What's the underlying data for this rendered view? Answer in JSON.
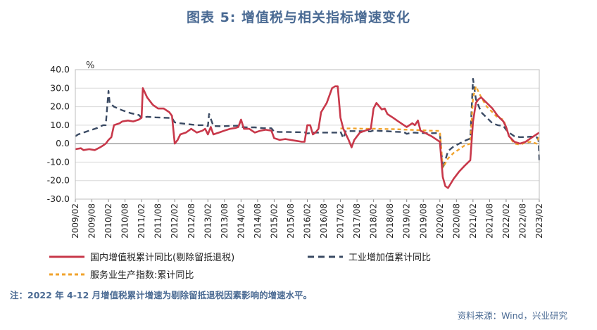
{
  "title": "图表 5:  增值税与相关指标增速变化",
  "y_unit": "%",
  "note": "注：2022 年 4-12 月增值税累计增速为剔除留抵退税因素影响的增速水平。",
  "source": "资料来源：Wind，兴业研究",
  "colors": {
    "vat": "#c8384a",
    "industry": "#3a4a63",
    "services": "#f1a32c",
    "grid": "#d9d9d9",
    "axis": "#888888"
  },
  "chart_data": {
    "type": "line",
    "ylim": [
      -30,
      40
    ],
    "yticks": [
      -30,
      -20,
      -10,
      0,
      10,
      20,
      30,
      40
    ],
    "ytick_labels": [
      "-30.0",
      "-20.0",
      "-10.0",
      "0.0",
      "10.0",
      "20.0",
      "30.0",
      "40.0"
    ],
    "xlim": [
      2009.083,
      2023.083
    ],
    "xtick_labels": [
      "2009/02",
      "2009/08",
      "2010/02",
      "2010/08",
      "2011/02",
      "2011/08",
      "2012/02",
      "2012/08",
      "2013/02",
      "2013/08",
      "2014/02",
      "2014/08",
      "2015/02",
      "2015/08",
      "2016/02",
      "2016/08",
      "2017/02",
      "2017/08",
      "2018/02",
      "2018/08",
      "2019/02",
      "2019/08",
      "2020/02",
      "2020/08",
      "2021/02",
      "2021/08",
      "2022/02",
      "2022/08",
      "2023/02"
    ],
    "grid": true,
    "legend_position": "bottom",
    "series": [
      {
        "name": "国内增值税累计同比(剔除留抵退税)",
        "style": "solid",
        "points": [
          [
            2009.083,
            -3
          ],
          [
            2009.25,
            -2.5
          ],
          [
            2009.33,
            -3.5
          ],
          [
            2009.5,
            -3
          ],
          [
            2009.67,
            -3.5
          ],
          [
            2009.83,
            -2
          ],
          [
            2009.92,
            -1
          ],
          [
            2010.0,
            0
          ],
          [
            2010.083,
            2
          ],
          [
            2010.17,
            3.5
          ],
          [
            2010.25,
            10
          ],
          [
            2010.42,
            11
          ],
          [
            2010.5,
            12
          ],
          [
            2010.67,
            12.5
          ],
          [
            2010.83,
            12
          ],
          [
            2011.0,
            13
          ],
          [
            2011.083,
            14
          ],
          [
            2011.12,
            30
          ],
          [
            2011.25,
            25
          ],
          [
            2011.42,
            21
          ],
          [
            2011.58,
            19
          ],
          [
            2011.75,
            19
          ],
          [
            2011.92,
            17
          ],
          [
            2012.0,
            15
          ],
          [
            2012.083,
            0
          ],
          [
            2012.17,
            2
          ],
          [
            2012.25,
            5
          ],
          [
            2012.42,
            6
          ],
          [
            2012.58,
            8
          ],
          [
            2012.75,
            6
          ],
          [
            2012.92,
            7
          ],
          [
            2013.0,
            8
          ],
          [
            2013.083,
            5
          ],
          [
            2013.17,
            9
          ],
          [
            2013.25,
            5
          ],
          [
            2013.42,
            6
          ],
          [
            2013.58,
            7
          ],
          [
            2013.75,
            8
          ],
          [
            2013.92,
            8.5
          ],
          [
            2014.0,
            9
          ],
          [
            2014.083,
            13
          ],
          [
            2014.17,
            8
          ],
          [
            2014.33,
            8
          ],
          [
            2014.5,
            6
          ],
          [
            2014.67,
            7
          ],
          [
            2014.83,
            7.5
          ],
          [
            2015.0,
            7
          ],
          [
            2015.083,
            3
          ],
          [
            2015.25,
            2
          ],
          [
            2015.42,
            2.5
          ],
          [
            2015.58,
            2
          ],
          [
            2015.75,
            1.5
          ],
          [
            2015.92,
            1
          ],
          [
            2016.0,
            1
          ],
          [
            2016.083,
            10
          ],
          [
            2016.17,
            10
          ],
          [
            2016.25,
            5
          ],
          [
            2016.33,
            6
          ],
          [
            2016.42,
            8
          ],
          [
            2016.5,
            17
          ],
          [
            2016.67,
            22
          ],
          [
            2016.83,
            30
          ],
          [
            2016.92,
            31
          ],
          [
            2017.0,
            31
          ],
          [
            2017.083,
            14
          ],
          [
            2017.17,
            8
          ],
          [
            2017.33,
            2
          ],
          [
            2017.42,
            -2
          ],
          [
            2017.5,
            2
          ],
          [
            2017.67,
            6
          ],
          [
            2017.83,
            7
          ],
          [
            2018.0,
            8
          ],
          [
            2018.083,
            19
          ],
          [
            2018.17,
            22
          ],
          [
            2018.33,
            18.5
          ],
          [
            2018.42,
            19
          ],
          [
            2018.5,
            16
          ],
          [
            2018.67,
            14
          ],
          [
            2018.83,
            12
          ],
          [
            2019.0,
            10
          ],
          [
            2019.083,
            9
          ],
          [
            2019.25,
            11
          ],
          [
            2019.33,
            10
          ],
          [
            2019.42,
            12.5
          ],
          [
            2019.5,
            7
          ],
          [
            2019.67,
            5.5
          ],
          [
            2019.83,
            4
          ],
          [
            2020.0,
            2
          ],
          [
            2020.083,
            1
          ],
          [
            2020.17,
            -18
          ],
          [
            2020.25,
            -23
          ],
          [
            2020.33,
            -24
          ],
          [
            2020.5,
            -19
          ],
          [
            2020.67,
            -15
          ],
          [
            2020.83,
            -12
          ],
          [
            2021.0,
            -9
          ],
          [
            2021.083,
            12
          ],
          [
            2021.17,
            22
          ],
          [
            2021.25,
            24
          ],
          [
            2021.33,
            25
          ],
          [
            2021.5,
            22
          ],
          [
            2021.67,
            19
          ],
          [
            2021.83,
            15
          ],
          [
            2022.0,
            12
          ],
          [
            2022.083,
            9
          ],
          [
            2022.17,
            4
          ],
          [
            2022.33,
            1
          ],
          [
            2022.5,
            0
          ],
          [
            2022.67,
            1
          ],
          [
            2022.83,
            3
          ],
          [
            2023.0,
            5
          ],
          [
            2023.083,
            6
          ]
        ]
      },
      {
        "name": "工业增加值累计同比",
        "style": "dashed",
        "points": [
          [
            2009.083,
            4
          ],
          [
            2009.17,
            5
          ],
          [
            2009.5,
            7
          ],
          [
            2009.75,
            8.5
          ],
          [
            2009.92,
            10
          ],
          [
            2010.0,
            10
          ],
          [
            2010.083,
            28.5
          ],
          [
            2010.12,
            22
          ],
          [
            2010.25,
            20
          ],
          [
            2010.5,
            18
          ],
          [
            2010.75,
            16.5
          ],
          [
            2011.0,
            15.5
          ],
          [
            2011.083,
            14
          ],
          [
            2011.25,
            14.5
          ],
          [
            2011.5,
            14.2
          ],
          [
            2011.75,
            14
          ],
          [
            2011.92,
            13.9
          ],
          [
            2012.0,
            13.9
          ],
          [
            2012.083,
            11.5
          ],
          [
            2012.25,
            11
          ],
          [
            2012.5,
            10.5
          ],
          [
            2012.75,
            10
          ],
          [
            2013.0,
            10
          ],
          [
            2013.083,
            9.5
          ],
          [
            2013.12,
            16
          ],
          [
            2013.25,
            9.5
          ],
          [
            2013.5,
            9.4
          ],
          [
            2013.75,
            9.6
          ],
          [
            2014.0,
            9.7
          ],
          [
            2014.083,
            9
          ],
          [
            2014.25,
            8.8
          ],
          [
            2014.5,
            8.8
          ],
          [
            2014.75,
            8.4
          ],
          [
            2015.0,
            8.3
          ],
          [
            2015.083,
            6.5
          ],
          [
            2015.25,
            6.3
          ],
          [
            2015.5,
            6.3
          ],
          [
            2015.75,
            6.2
          ],
          [
            2016.0,
            6.1
          ],
          [
            2016.083,
            5.5
          ],
          [
            2016.25,
            5.9
          ],
          [
            2016.5,
            6
          ],
          [
            2016.75,
            6
          ],
          [
            2017.0,
            6
          ],
          [
            2017.083,
            6.5
          ],
          [
            2017.17,
            3
          ],
          [
            2017.25,
            6.8
          ],
          [
            2017.5,
            6.8
          ],
          [
            2017.75,
            6.7
          ],
          [
            2018.0,
            6.6
          ],
          [
            2018.083,
            7.2
          ],
          [
            2018.25,
            6.9
          ],
          [
            2018.5,
            6.7
          ],
          [
            2018.75,
            6.4
          ],
          [
            2019.0,
            6.2
          ],
          [
            2019.083,
            5.3
          ],
          [
            2019.25,
            6.0
          ],
          [
            2019.5,
            5.8
          ],
          [
            2019.75,
            5.6
          ],
          [
            2020.0,
            5.7
          ],
          [
            2020.083,
            5.7
          ],
          [
            2020.17,
            -13.5
          ],
          [
            2020.33,
            -4
          ],
          [
            2020.5,
            -1.5
          ],
          [
            2020.67,
            0
          ],
          [
            2020.83,
            1.5
          ],
          [
            2021.0,
            2.8
          ],
          [
            2021.083,
            35
          ],
          [
            2021.17,
            24
          ],
          [
            2021.33,
            17
          ],
          [
            2021.5,
            14
          ],
          [
            2021.67,
            11
          ],
          [
            2021.83,
            10
          ],
          [
            2022.0,
            9.6
          ],
          [
            2022.083,
            7.5
          ],
          [
            2022.17,
            6
          ],
          [
            2022.33,
            4
          ],
          [
            2022.5,
            3.5
          ],
          [
            2022.67,
            3.6
          ],
          [
            2022.83,
            3.8
          ],
          [
            2023.0,
            3.6
          ],
          [
            2023.06,
            2
          ],
          [
            2023.083,
            -10
          ]
        ]
      },
      {
        "name": "服务业生产指数:累计同比",
        "style": "dashed",
        "points": [
          [
            2017.083,
            8.2
          ],
          [
            2017.5,
            8.2
          ],
          [
            2017.75,
            8.1
          ],
          [
            2018.0,
            8.0
          ],
          [
            2018.083,
            8.1
          ],
          [
            2018.5,
            7.9
          ],
          [
            2018.75,
            7.8
          ],
          [
            2019.0,
            7.6
          ],
          [
            2019.5,
            7.3
          ],
          [
            2019.75,
            7.0
          ],
          [
            2020.0,
            6.9
          ],
          [
            2020.083,
            6.9
          ],
          [
            2020.17,
            -13
          ],
          [
            2020.33,
            -8
          ],
          [
            2020.5,
            -5
          ],
          [
            2020.67,
            -3
          ],
          [
            2020.83,
            -1
          ],
          [
            2021.0,
            0
          ],
          [
            2021.083,
            25
          ],
          [
            2021.17,
            31
          ],
          [
            2021.33,
            25
          ],
          [
            2021.5,
            20
          ],
          [
            2021.67,
            17
          ],
          [
            2021.83,
            14
          ],
          [
            2022.0,
            13
          ],
          [
            2022.083,
            9
          ],
          [
            2022.17,
            4
          ],
          [
            2022.33,
            0
          ],
          [
            2022.5,
            -0.5
          ],
          [
            2022.67,
            0.5
          ],
          [
            2022.83,
            1
          ],
          [
            2023.0,
            0
          ],
          [
            2023.083,
            4
          ]
        ]
      }
    ]
  }
}
